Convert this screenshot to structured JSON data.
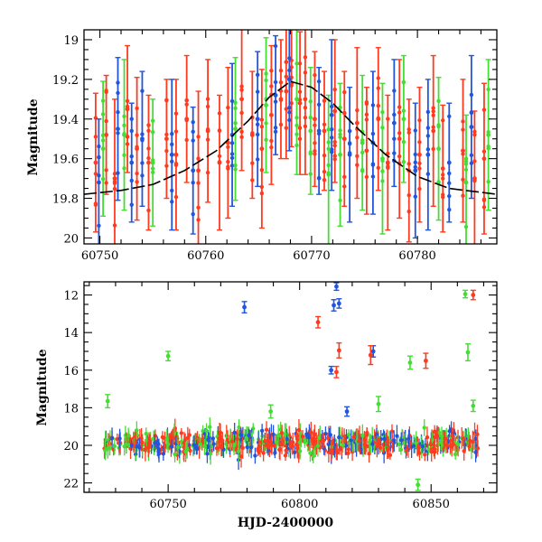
{
  "chart_data": [
    {
      "type": "scatter",
      "panel": "top",
      "xlabel": "",
      "ylabel": "Magnitude",
      "xlim": [
        60748.5,
        60787.5
      ],
      "ylim": [
        20.03,
        18.95
      ],
      "y_inverted": true,
      "x_ticks": [
        60750,
        60760,
        60770,
        60780
      ],
      "y_ticks": [
        19,
        19.2,
        19.4,
        19.6,
        19.8,
        20
      ],
      "x_tick_labels": [
        "60750",
        "60760",
        "60770",
        "60780"
      ],
      "y_tick_labels": [
        "19",
        "19.2",
        "19.4",
        "19.6",
        "19.8",
        "20"
      ],
      "grid": false,
      "legend": "none",
      "model_curve": {
        "name": "",
        "color": "#000000",
        "style": "dashed",
        "x": [
          60748.5,
          60752,
          60755,
          60758,
          60761,
          60764,
          60766,
          60768,
          60770,
          60772,
          60774,
          60777,
          60780,
          60783,
          60786,
          60787.5
        ],
        "y": [
          19.78,
          19.76,
          19.73,
          19.66,
          19.56,
          19.41,
          19.29,
          19.21,
          19.24,
          19.32,
          19.43,
          19.58,
          19.69,
          19.75,
          19.77,
          19.78
        ]
      },
      "series": [
        {
          "name": "",
          "color": "#ff3b1f",
          "x": [
            60749.6,
            60750.6,
            60751.4,
            60752.6,
            60753.5,
            60754.6,
            60756.3,
            60757.2,
            60758.2,
            60759.3,
            60760.2,
            60761.3,
            60762.1,
            60763.4,
            60764.4,
            60765.3,
            60766.2,
            60767.1,
            60767.6,
            60768.1,
            60768.9,
            60769.4,
            60770.3,
            60771.2,
            60772.2,
            60773.1,
            60774.3,
            60775.2,
            60776.3,
            60777.2,
            60778.3,
            60779.2,
            60780.2,
            60781.5,
            60782.4,
            60784.3,
            60785.4,
            60786.3
          ],
          "y": [
            19.62,
            19.48,
            19.7,
            19.35,
            19.55,
            19.62,
            19.5,
            19.58,
            19.4,
            19.66,
            19.46,
            19.62,
            19.52,
            19.3,
            19.48,
            19.55,
            19.38,
            19.3,
            19.26,
            19.22,
            19.32,
            19.3,
            19.4,
            19.46,
            19.36,
            19.5,
            19.42,
            19.56,
            19.4,
            19.62,
            19.5,
            19.66,
            19.58,
            19.46,
            19.65,
            19.56,
            19.7,
            19.6
          ],
          "err": [
            0.35,
            0.3,
            0.4,
            0.32,
            0.36,
            0.34,
            0.3,
            0.38,
            0.32,
            0.4,
            0.36,
            0.34,
            0.38,
            0.36,
            0.32,
            0.4,
            0.35,
            0.3,
            0.34,
            0.32,
            0.36,
            0.38,
            0.34,
            0.3,
            0.36,
            0.34,
            0.38,
            0.32,
            0.36,
            0.34,
            0.4,
            0.36,
            0.34,
            0.38,
            0.32,
            0.36,
            0.34,
            0.38
          ]
        },
        {
          "name": "",
          "color": "#2255dd",
          "x": [
            60749.9,
            60751.7,
            60753.0,
            60754.0,
            60756.8,
            60758.8,
            60762.5,
            60764.9,
            60766.6,
            60767.9,
            60770.7,
            60771.9,
            60773.6,
            60775.8,
            60777.8,
            60779.8,
            60781.0,
            60783.0,
            60785.1
          ],
          "y": [
            19.72,
            19.45,
            19.62,
            19.5,
            19.58,
            19.66,
            19.48,
            19.4,
            19.28,
            19.2,
            19.46,
            19.38,
            19.58,
            19.52,
            19.42,
            19.66,
            19.58,
            19.62,
            19.44
          ],
          "err": [
            0.32,
            0.36,
            0.3,
            0.34,
            0.38,
            0.32,
            0.36,
            0.34,
            0.3,
            0.36,
            0.32,
            0.38,
            0.34,
            0.36,
            0.32,
            0.34,
            0.38,
            0.3,
            0.36
          ]
        },
        {
          "name": "",
          "color": "#44dd33",
          "x": [
            60750.3,
            60752.3,
            60755.0,
            60762.8,
            60765.7,
            60768.6,
            60769.9,
            60771.6,
            60772.7,
            60774.8,
            60776.7,
            60778.7,
            60782.0,
            60784.6,
            60786.7
          ],
          "y": [
            19.55,
            19.48,
            19.62,
            19.45,
            19.33,
            19.3,
            19.46,
            19.68,
            19.58,
            19.52,
            19.6,
            19.4,
            19.55,
            19.72,
            19.48
          ],
          "err": [
            0.34,
            0.38,
            0.32,
            0.36,
            0.34,
            0.38,
            0.32,
            0.4,
            0.36,
            0.34,
            0.38,
            0.32,
            0.36,
            0.34,
            0.38
          ]
        }
      ]
    },
    {
      "type": "scatter",
      "panel": "bottom",
      "xlabel": "HJD-2400000",
      "ylabel": "Magnitude",
      "xlim": [
        60718,
        60875
      ],
      "ylim": [
        22.5,
        11.3
      ],
      "y_inverted": true,
      "x_ticks": [
        60750,
        60800,
        60850
      ],
      "y_ticks": [
        12,
        14,
        16,
        18,
        20,
        22
      ],
      "x_tick_labels": [
        "60750",
        "60800",
        "60850"
      ],
      "y_tick_labels": [
        "12",
        "14",
        "16",
        "18",
        "20",
        "22"
      ],
      "grid": false,
      "legend": "none",
      "baseline": {
        "x_start": 60725,
        "x_end": 60868,
        "mean_mag": 19.85,
        "scatter_mag": 0.45
      },
      "outliers": [
        {
          "color": "#2255dd",
          "x": 60779,
          "y": 12.65,
          "err": 0.3
        },
        {
          "color": "#2255dd",
          "x": 60814,
          "y": 11.55,
          "err": 0.2
        },
        {
          "color": "#2255dd",
          "x": 60813,
          "y": 12.55,
          "err": 0.3
        },
        {
          "color": "#2255dd",
          "x": 60815,
          "y": 12.45,
          "err": 0.25
        },
        {
          "color": "#2255dd",
          "x": 60812,
          "y": 16.0,
          "err": 0.2
        },
        {
          "color": "#2255dd",
          "x": 60828,
          "y": 15.0,
          "err": 0.3
        },
        {
          "color": "#2255dd",
          "x": 60818,
          "y": 18.2,
          "err": 0.25
        },
        {
          "color": "#ff3b1f",
          "x": 60807,
          "y": 13.45,
          "err": 0.3
        },
        {
          "color": "#ff3b1f",
          "x": 60815,
          "y": 14.95,
          "err": 0.4
        },
        {
          "color": "#ff3b1f",
          "x": 60814,
          "y": 16.1,
          "err": 0.3
        },
        {
          "color": "#ff3b1f",
          "x": 60827,
          "y": 15.2,
          "err": 0.5
        },
        {
          "color": "#ff3b1f",
          "x": 60848,
          "y": 15.5,
          "err": 0.4
        },
        {
          "color": "#ff3b1f",
          "x": 60866,
          "y": 12.0,
          "err": 0.25
        },
        {
          "color": "#44dd33",
          "x": 60727,
          "y": 17.65,
          "err": 0.35
        },
        {
          "color": "#44dd33",
          "x": 60750,
          "y": 15.25,
          "err": 0.25
        },
        {
          "color": "#44dd33",
          "x": 60789,
          "y": 18.2,
          "err": 0.35
        },
        {
          "color": "#44dd33",
          "x": 60830,
          "y": 17.8,
          "err": 0.4
        },
        {
          "color": "#44dd33",
          "x": 60842,
          "y": 15.6,
          "err": 0.35
        },
        {
          "color": "#44dd33",
          "x": 60863,
          "y": 11.95,
          "err": 0.2
        },
        {
          "color": "#44dd33",
          "x": 60864,
          "y": 15.05,
          "err": 0.45
        },
        {
          "color": "#44dd33",
          "x": 60866,
          "y": 17.9,
          "err": 0.3
        },
        {
          "color": "#44dd33",
          "x": 60845,
          "y": 22.1,
          "err": 0.3
        }
      ]
    }
  ]
}
